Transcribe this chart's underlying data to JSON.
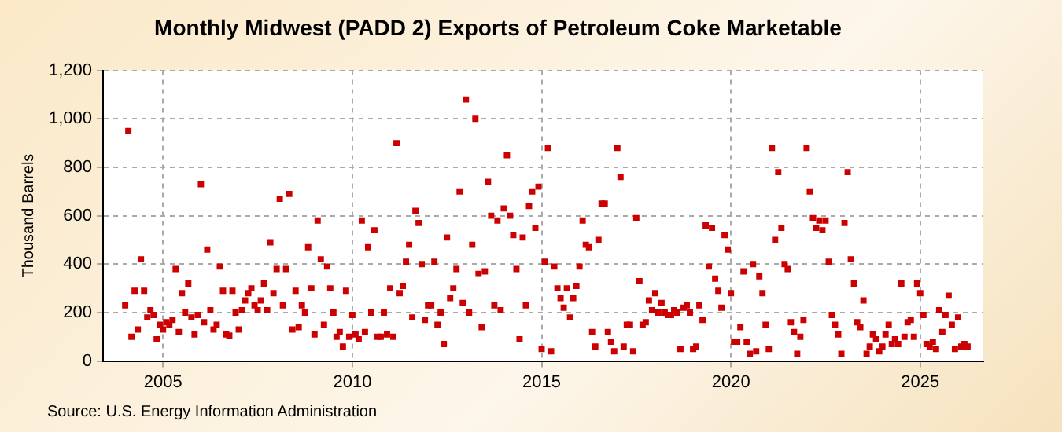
{
  "chart_data": {
    "type": "scatter",
    "title": "Monthly Midwest (PADD 2) Exports of Petroleum Coke Marketable",
    "ylabel": "Thousand Barrels",
    "annotations": [
      "Source: U.S. Energy Information Administration"
    ],
    "x": [
      "2004-01",
      "2004-02",
      "2004-03",
      "2004-04",
      "2004-05",
      "2004-06",
      "2004-07",
      "2004-08",
      "2004-09",
      "2004-10",
      "2004-11",
      "2004-12",
      "2005-01",
      "2005-02",
      "2005-03",
      "2005-04",
      "2005-05",
      "2005-06",
      "2005-07",
      "2005-08",
      "2005-09",
      "2005-10",
      "2005-11",
      "2005-12",
      "2006-01",
      "2006-02",
      "2006-03",
      "2006-04",
      "2006-05",
      "2006-06",
      "2006-07",
      "2006-08",
      "2006-09",
      "2006-10",
      "2006-11",
      "2006-12",
      "2007-01",
      "2007-02",
      "2007-03",
      "2007-04",
      "2007-05",
      "2007-06",
      "2007-07",
      "2007-08",
      "2007-09",
      "2007-10",
      "2007-11",
      "2007-12",
      "2008-01",
      "2008-02",
      "2008-03",
      "2008-04",
      "2008-05",
      "2008-06",
      "2008-07",
      "2008-08",
      "2008-09",
      "2008-10",
      "2008-11",
      "2008-12",
      "2009-01",
      "2009-02",
      "2009-03",
      "2009-04",
      "2009-05",
      "2009-06",
      "2009-07",
      "2009-08",
      "2009-09",
      "2009-10",
      "2009-11",
      "2009-12",
      "2010-01",
      "2010-02",
      "2010-03",
      "2010-04",
      "2010-05",
      "2010-06",
      "2010-07",
      "2010-08",
      "2010-09",
      "2010-10",
      "2010-11",
      "2010-12",
      "2011-01",
      "2011-02",
      "2011-03",
      "2011-04",
      "2011-05",
      "2011-06",
      "2011-07",
      "2011-08",
      "2011-09",
      "2011-10",
      "2011-11",
      "2011-12",
      "2012-01",
      "2012-02",
      "2012-03",
      "2012-04",
      "2012-05",
      "2012-06",
      "2012-07",
      "2012-08",
      "2012-09",
      "2012-10",
      "2012-11",
      "2012-12",
      "2013-01",
      "2013-02",
      "2013-03",
      "2013-04",
      "2013-05",
      "2013-06",
      "2013-07",
      "2013-08",
      "2013-09",
      "2013-10",
      "2013-11",
      "2013-12",
      "2014-01",
      "2014-02",
      "2014-03",
      "2014-04",
      "2014-05",
      "2014-06",
      "2014-07",
      "2014-08",
      "2014-09",
      "2014-10",
      "2014-11",
      "2014-12",
      "2015-01",
      "2015-02",
      "2015-03",
      "2015-04",
      "2015-05",
      "2015-06",
      "2015-07",
      "2015-08",
      "2015-09",
      "2015-10",
      "2015-11",
      "2015-12",
      "2016-01",
      "2016-02",
      "2016-03",
      "2016-04",
      "2016-05",
      "2016-06",
      "2016-07",
      "2016-08",
      "2016-09",
      "2016-10",
      "2016-11",
      "2016-12",
      "2017-01",
      "2017-02",
      "2017-03",
      "2017-04",
      "2017-05",
      "2017-06",
      "2017-07",
      "2017-08",
      "2017-09",
      "2017-10",
      "2017-11",
      "2017-12",
      "2018-01",
      "2018-02",
      "2018-03",
      "2018-04",
      "2018-05",
      "2018-06",
      "2018-07",
      "2018-08",
      "2018-09",
      "2018-10",
      "2018-11",
      "2018-12",
      "2019-01",
      "2019-02",
      "2019-03",
      "2019-04",
      "2019-05",
      "2019-06",
      "2019-07",
      "2019-08",
      "2019-09",
      "2019-10",
      "2019-11",
      "2019-12",
      "2020-01",
      "2020-02",
      "2020-03",
      "2020-04",
      "2020-05",
      "2020-06",
      "2020-07",
      "2020-08",
      "2020-09",
      "2020-10",
      "2020-11",
      "2020-12",
      "2021-01",
      "2021-02",
      "2021-03",
      "2021-04",
      "2021-05",
      "2021-06",
      "2021-07",
      "2021-08",
      "2021-09",
      "2021-10",
      "2021-11",
      "2021-12",
      "2022-01",
      "2022-02",
      "2022-03",
      "2022-04",
      "2022-05",
      "2022-06",
      "2022-07",
      "2022-08",
      "2022-09",
      "2022-10",
      "2022-11",
      "2022-12",
      "2023-01",
      "2023-02",
      "2023-03",
      "2023-04",
      "2023-05",
      "2023-06",
      "2023-07",
      "2023-08",
      "2023-09",
      "2023-10",
      "2023-11",
      "2023-12",
      "2024-01",
      "2024-02",
      "2024-03",
      "2024-04",
      "2024-05",
      "2024-06",
      "2024-07",
      "2024-08",
      "2024-09",
      "2024-10",
      "2024-11",
      "2024-12",
      "2025-01",
      "2025-02",
      "2025-03",
      "2025-04",
      "2025-05",
      "2025-06",
      "2025-07",
      "2025-08",
      "2025-09",
      "2025-10",
      "2025-11",
      "2025-12",
      "2026-01",
      "2026-02",
      "2026-03",
      "2026-04"
    ],
    "series": [
      {
        "color": "#cc0000",
        "values": [
          230,
          950,
          100,
          290,
          130,
          420,
          290,
          180,
          210,
          190,
          90,
          150,
          130,
          160,
          150,
          170,
          380,
          120,
          280,
          200,
          320,
          180,
          110,
          190,
          730,
          160,
          460,
          210,
          130,
          150,
          390,
          290,
          110,
          105,
          290,
          200,
          130,
          210,
          250,
          280,
          300,
          230,
          210,
          250,
          320,
          210,
          490,
          280,
          380,
          670,
          230,
          380,
          690,
          130,
          290,
          140,
          230,
          200,
          470,
          300,
          110,
          580,
          420,
          150,
          390,
          300,
          200,
          100,
          120,
          60,
          290,
          100,
          190,
          110,
          90,
          580,
          120,
          470,
          200,
          540,
          100,
          100,
          200,
          110,
          300,
          100,
          900,
          280,
          310,
          410,
          480,
          180,
          620,
          570,
          400,
          170,
          230,
          230,
          410,
          150,
          200,
          70,
          510,
          260,
          300,
          380,
          700,
          240,
          1080,
          200,
          480,
          1000,
          360,
          140,
          370,
          740,
          600,
          230,
          580,
          210,
          630,
          850,
          600,
          520,
          380,
          90,
          510,
          230,
          640,
          700,
          550,
          720,
          50,
          410,
          880,
          40,
          390,
          300,
          260,
          220,
          300,
          180,
          260,
          310,
          390,
          580,
          480,
          470,
          120,
          60,
          500,
          650,
          650,
          120,
          80,
          40,
          880,
          760,
          60,
          150,
          150,
          40,
          590,
          330,
          150,
          160,
          250,
          210,
          280,
          200,
          240,
          200,
          190,
          190,
          210,
          200,
          50,
          220,
          230,
          200,
          50,
          60,
          230,
          170,
          560,
          390,
          550,
          340,
          290,
          220,
          520,
          460,
          280,
          80,
          80,
          140,
          370,
          80,
          30,
          400,
          40,
          350,
          280,
          150,
          50,
          880,
          500,
          780,
          550,
          400,
          380,
          160,
          120,
          30,
          100,
          170,
          880,
          700,
          590,
          550,
          580,
          540,
          580,
          410,
          190,
          150,
          110,
          30,
          570,
          780,
          420,
          320,
          160,
          140,
          250,
          30,
          60,
          110,
          90,
          40,
          60,
          110,
          150,
          70,
          90,
          70,
          320,
          100,
          160,
          170,
          100,
          320,
          280,
          190,
          70,
          60,
          80,
          50,
          210,
          120,
          190,
          270,
          150,
          50,
          180,
          60,
          70,
          60
        ]
      }
    ],
    "xlim": [
      "2003-06",
      "2026-09"
    ],
    "xticks": [
      "2005",
      "2010",
      "2015",
      "2020",
      "2025"
    ],
    "ylim": [
      0,
      1200
    ],
    "yticks": [
      0,
      200,
      400,
      600,
      800,
      {
        "value": 1000,
        "label": "1,000"
      },
      {
        "value": 1200,
        "label": "1,200"
      }
    ],
    "grid": true,
    "legend": false,
    "marker": "square"
  }
}
